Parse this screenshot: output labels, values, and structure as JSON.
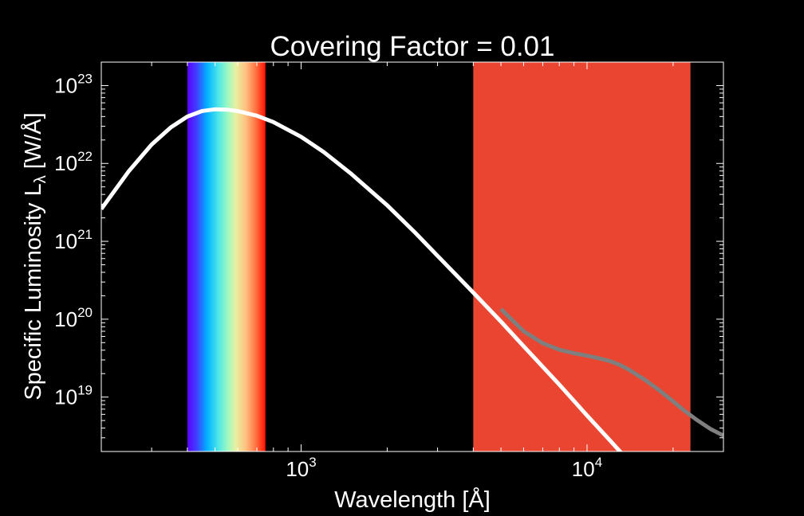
{
  "chart_data": {
    "type": "line",
    "title": "Covering Factor = 0.01",
    "xlabel": "Wavelength [Å]",
    "ylabel": "Specific Luminosity L",
    "ylabel_sub": "λ",
    "ylabel_unit": " [W/Å]",
    "x_scale": "log",
    "y_scale": "log",
    "xlim": [
      200,
      30000
    ],
    "ylim": [
      2e+18,
      2e+23
    ],
    "x_ticks": [
      {
        "value": 1000,
        "base": "10",
        "exp": "3"
      },
      {
        "value": 10000,
        "base": "10",
        "exp": "4"
      }
    ],
    "y_ticks": [
      {
        "value": 1e+19,
        "base": "10",
        "exp": "19"
      },
      {
        "value": 1e+20,
        "base": "10",
        "exp": "20"
      },
      {
        "value": 1e+21,
        "base": "10",
        "exp": "21"
      },
      {
        "value": 1e+22,
        "base": "10",
        "exp": "22"
      },
      {
        "value": 1e+23,
        "base": "10",
        "exp": "23"
      }
    ],
    "grid": false,
    "bands": [
      {
        "kind": "visible-spectrum",
        "x_range": [
          400,
          750
        ]
      },
      {
        "kind": "infrared",
        "x_range": [
          4000,
          23000
        ],
        "color": "#EA4530"
      }
    ],
    "series": [
      {
        "color": "#7f7f7f",
        "x": [
          5000,
          6000,
          7000,
          8000,
          9000,
          10000,
          11000,
          12000,
          13000,
          14000,
          16000,
          18000,
          20000,
          22000,
          24000,
          27000,
          30000
        ],
        "y": [
          1.35e+20,
          7e+19,
          4.9e+19,
          4.05e+19,
          3.65e+19,
          3.4e+19,
          3.15e+19,
          2.9e+19,
          2.6e+19,
          2.25e+19,
          1.65e+19,
          1.2e+19,
          8.8e+18,
          6.6e+18,
          5.2e+18,
          3.9e+18,
          3.2e+18
        ]
      },
      {
        "color": "#ffffff",
        "x": [
          200,
          250,
          300,
          350,
          400,
          450,
          500,
          550,
          600,
          700,
          800,
          1000,
          1200,
          1500,
          2000,
          2500,
          3000,
          4000,
          5000,
          6000,
          8000,
          10000,
          12000,
          14000,
          14500
        ],
        "y": [
          2.6e+21,
          8e+21,
          1.75e+22,
          2.9e+22,
          4e+22,
          4.7e+22,
          4.95e+22,
          4.9e+22,
          4.7e+22,
          4.1e+22,
          3.4e+22,
          2.2e+22,
          1.4e+22,
          7.3e+21,
          2.9e+21,
          1.3e+21,
          6.5e+20,
          2.2e+20,
          9.3e+19,
          4.5e+19,
          1.45e+19,
          5.8e+18,
          2.8e+18,
          1.5e+18,
          1.3e+18
        ]
      }
    ]
  }
}
